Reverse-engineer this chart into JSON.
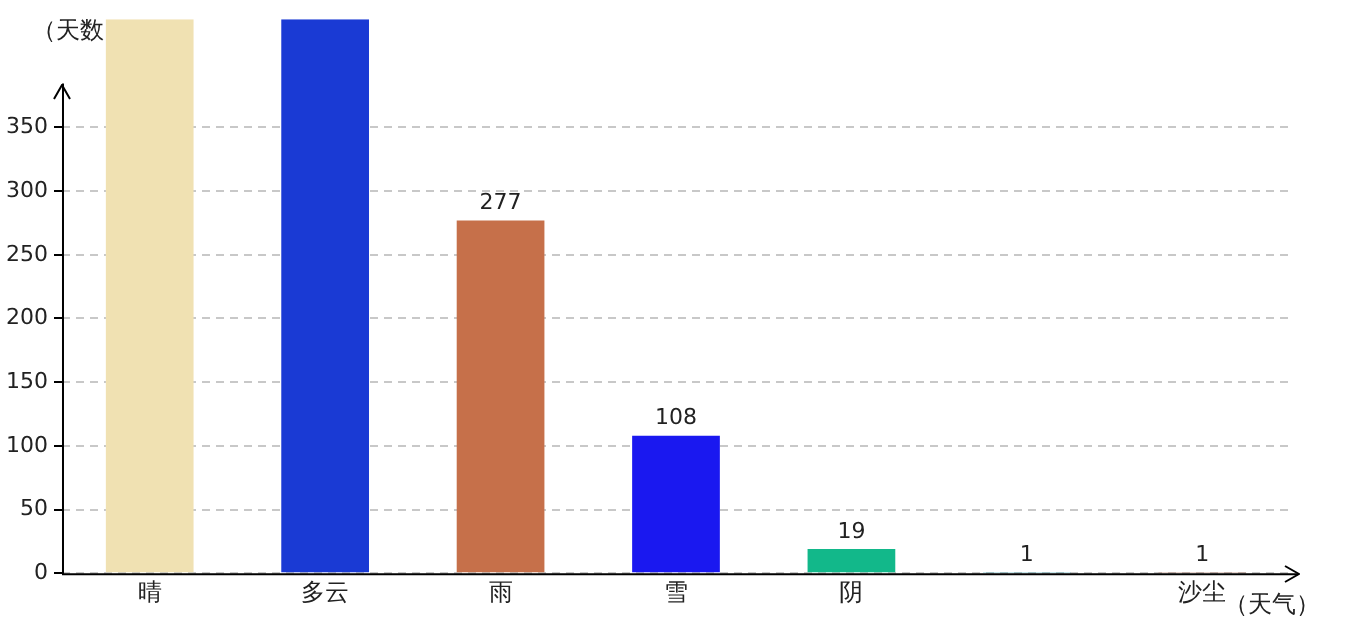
{
  "chart_data": {
    "type": "bar",
    "xlabel": "（天气）",
    "ylabel": "（天数",
    "categories": [
      "晴",
      "多云",
      "雨",
      "雪",
      "阴",
      null,
      "沙尘"
    ],
    "values": [
      435,
      435,
      277,
      108,
      19,
      1,
      1
    ],
    "colors": [
      "#f0e1b2",
      "#1a3ad4",
      "#c6704a",
      "#1a18f0",
      "#12b88a",
      "#1f9bb0",
      "#a0563a"
    ],
    "value_labels": [
      null,
      null,
      "277",
      "108",
      "19",
      "1",
      "1"
    ],
    "ylim": [
      0,
      435
    ],
    "yticks": [
      0,
      50,
      100,
      150,
      200,
      250,
      300,
      350
    ],
    "grid": "y",
    "legend": false
  }
}
